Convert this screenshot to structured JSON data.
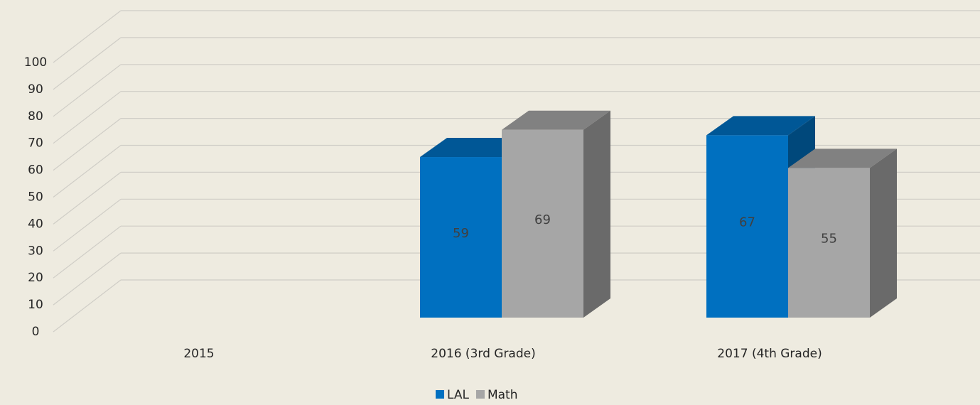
{
  "chart_data": {
    "type": "bar3d",
    "categories": [
      "2015",
      "2016 (3rd Grade)",
      "2017 (4th Grade)"
    ],
    "series": [
      {
        "name": "LAL",
        "color": "#0070c0",
        "values": [
          null,
          59,
          67
        ]
      },
      {
        "name": "Math",
        "color": "#a6a6a6",
        "values": [
          null,
          69,
          55
        ]
      }
    ],
    "ylim": [
      0,
      100
    ],
    "yticks": [
      0,
      10,
      20,
      30,
      40,
      50,
      60,
      70,
      80,
      90,
      100
    ],
    "grid": true,
    "legend": "bottom"
  }
}
